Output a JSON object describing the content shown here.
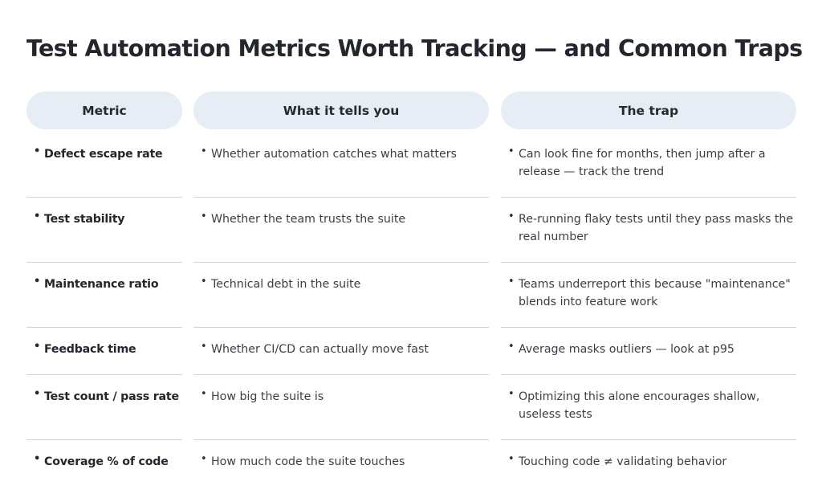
{
  "title": "Test Automation Metrics Worth Tracking — and Common Traps",
  "headers": {
    "metric": "Metric",
    "tells": "What it tells you",
    "trap": "The trap"
  },
  "bullet": "•",
  "rows": [
    {
      "metric": "Defect escape rate",
      "tells": "Whether automation catches what matters",
      "trap": "Can look fine for months, then jump after a release — track the trend"
    },
    {
      "metric": "Test stability",
      "tells": "Whether the team trusts the suite",
      "trap": "Re-running flaky tests until they pass masks the real number"
    },
    {
      "metric": "Maintenance ratio",
      "tells": "Technical debt in the suite",
      "trap": "Teams underreport this because \"maintenance\" blends into feature work"
    },
    {
      "metric": "Feedback time",
      "tells": "Whether CI/CD can actually move fast",
      "trap": "Average masks outliers — look at p95"
    },
    {
      "metric": "Test count / pass rate",
      "tells": "How big the suite is",
      "trap": "Optimizing this alone encourages shallow, useless tests"
    },
    {
      "metric": "Coverage % of code",
      "tells": "How much code the suite touches",
      "trap": "Touching code ≠ validating behavior"
    }
  ]
}
